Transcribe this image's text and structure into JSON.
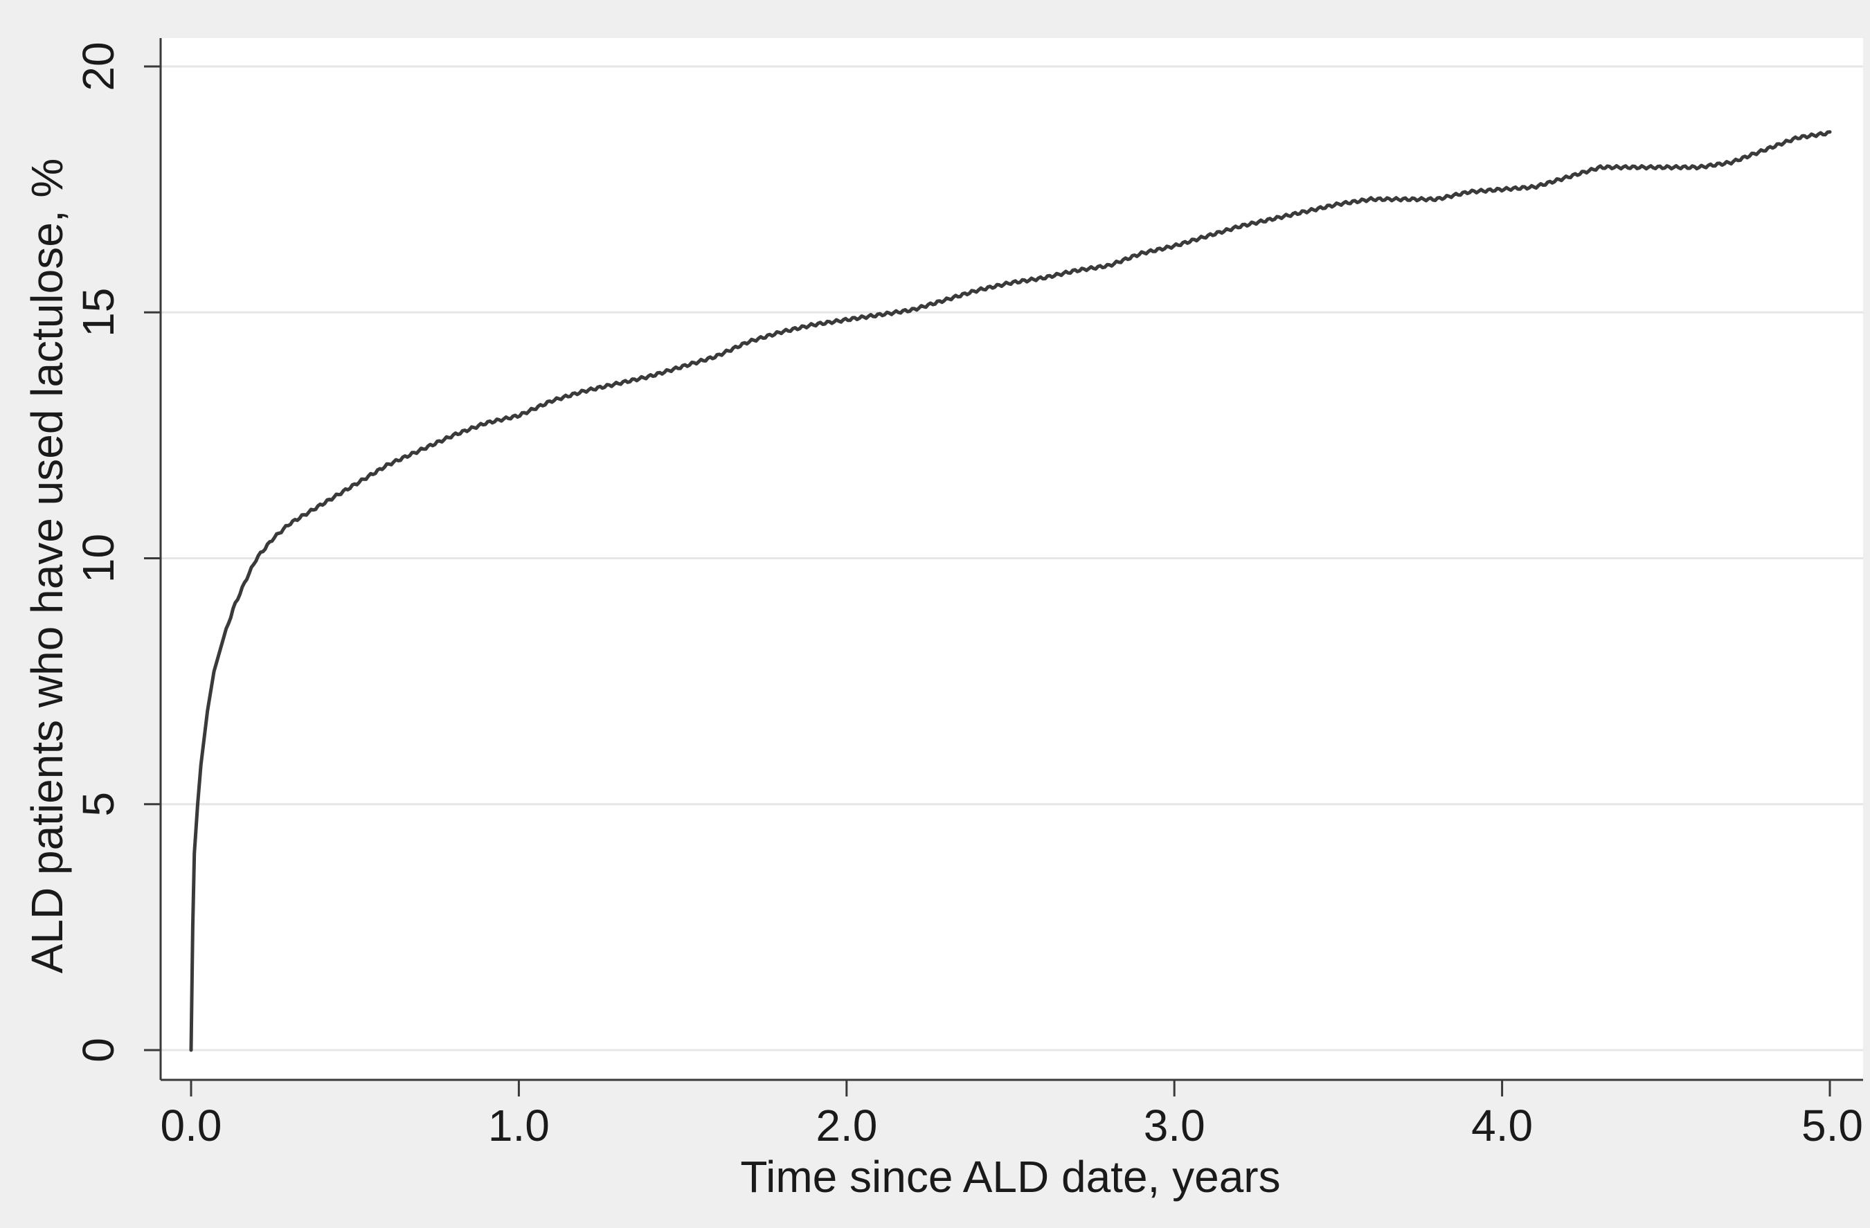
{
  "chart_data": {
    "type": "line",
    "title": "",
    "xlabel": "Time since ALD date, years",
    "ylabel": "ALD patients who have used lactulose, %",
    "xlim": [
      0,
      5
    ],
    "ylim": [
      0,
      20
    ],
    "x_ticks": [
      0,
      1,
      2,
      3,
      4,
      5
    ],
    "x_tick_labels": [
      "0.0",
      "1.0",
      "2.0",
      "3.0",
      "4.0",
      "5.0"
    ],
    "y_ticks": [
      0,
      5,
      10,
      15,
      20
    ],
    "y_tick_labels": [
      "0",
      "5",
      "10",
      "15",
      "20"
    ],
    "grid": "horizontal",
    "legend": "none",
    "colors": {
      "background": "#efefef",
      "plot_background": "#ffffff",
      "line": "#3a3a3a",
      "grid": "#e6e6e6",
      "axis": "#3a3a3a"
    },
    "series": [
      {
        "x": [
          0,
          0.005,
          0.01,
          0.02,
          0.03,
          0.05,
          0.07,
          0.1,
          0.13,
          0.17,
          0.2,
          0.25,
          0.3,
          0.35,
          0.4,
          0.45,
          0.5,
          0.6,
          0.7,
          0.8,
          0.9,
          1.0,
          1.1,
          1.2,
          1.3,
          1.4,
          1.5,
          1.6,
          1.7,
          1.8,
          1.9,
          2.0,
          2.1,
          2.2,
          2.3,
          2.4,
          2.5,
          2.6,
          2.7,
          2.8,
          2.9,
          3.0,
          3.1,
          3.2,
          3.3,
          3.4,
          3.5,
          3.6,
          3.7,
          3.8,
          3.9,
          4.0,
          4.1,
          4.2,
          4.3,
          4.4,
          4.5,
          4.6,
          4.7,
          4.8,
          4.9,
          5.0
        ],
        "y": [
          0,
          2.5,
          4.0,
          5.0,
          5.8,
          6.9,
          7.7,
          8.4,
          9.0,
          9.6,
          10.0,
          10.4,
          10.7,
          10.9,
          11.1,
          11.3,
          11.5,
          11.9,
          12.2,
          12.5,
          12.75,
          12.9,
          13.2,
          13.4,
          13.55,
          13.7,
          13.9,
          14.1,
          14.4,
          14.6,
          14.75,
          14.85,
          14.95,
          15.05,
          15.25,
          15.45,
          15.6,
          15.7,
          15.85,
          15.95,
          16.2,
          16.35,
          16.55,
          16.75,
          16.9,
          17.05,
          17.2,
          17.3,
          17.3,
          17.3,
          17.45,
          17.5,
          17.55,
          17.75,
          17.95,
          17.95,
          17.95,
          17.95,
          18.05,
          18.3,
          18.55,
          18.65
        ]
      }
    ]
  }
}
